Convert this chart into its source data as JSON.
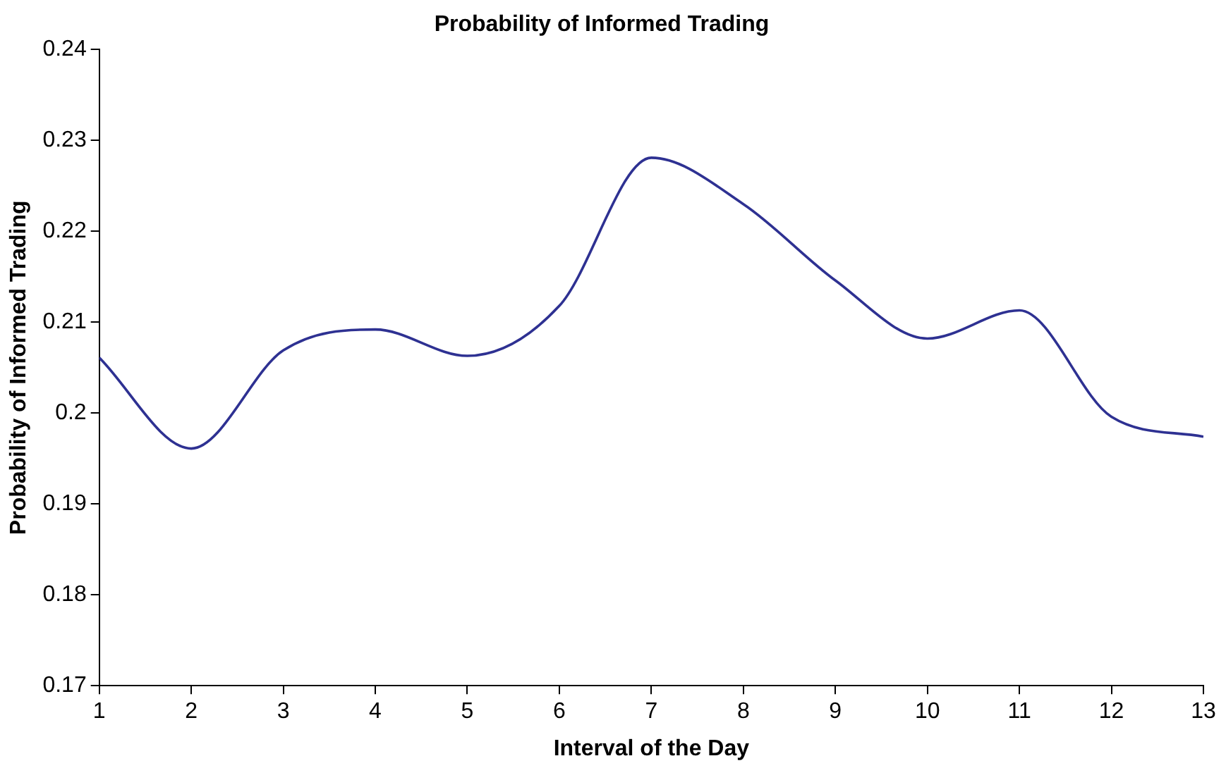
{
  "chart_data": {
    "type": "line",
    "title": "Probability of Informed Trading",
    "xlabel": "Interval of the Day",
    "ylabel": "Probability of Informed Trading",
    "x": [
      1,
      2,
      3,
      4,
      5,
      6,
      7,
      8,
      9,
      10,
      11,
      12,
      13
    ],
    "series": [
      {
        "color": "#2e3192",
        "values": [
          0.2061,
          0.1961,
          0.2069,
          0.2092,
          0.2063,
          0.2118,
          0.2281,
          0.223,
          0.2146,
          0.2082,
          0.2113,
          0.1996,
          0.1974
        ]
      }
    ],
    "xlim": [
      1,
      13
    ],
    "xticks": [
      1,
      2,
      3,
      4,
      5,
      6,
      7,
      8,
      9,
      10,
      11,
      12,
      13
    ],
    "ylim": [
      0.17,
      0.24
    ],
    "yticks": [
      0.17,
      0.18,
      0.19,
      0.2,
      0.21,
      0.22,
      0.23,
      0.24
    ],
    "grid": false,
    "legend": false,
    "marker": "none",
    "line_style": "solid"
  }
}
